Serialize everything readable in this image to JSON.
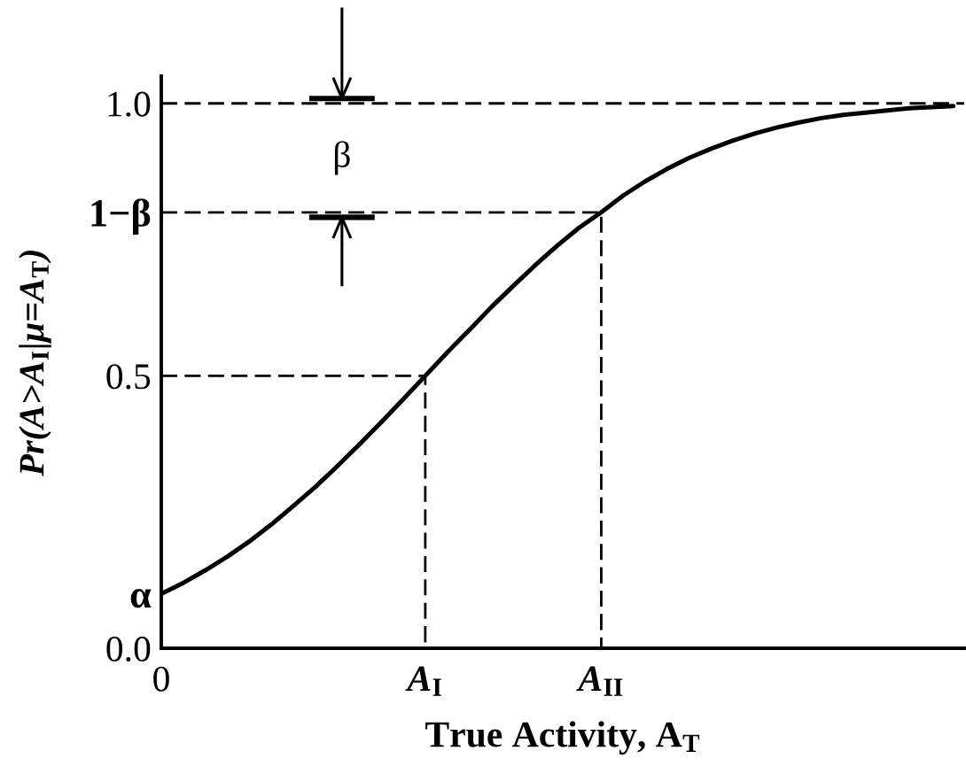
{
  "chart_data": {
    "type": "line",
    "xlabel": "True Activity, A$_{T}$",
    "ylabel": "Pr(A>A$_{I}$|μ=A$_{T}$)",
    "categories": [
      "0",
      null,
      null,
      null,
      null,
      null,
      null,
      null,
      null,
      null,
      null,
      null,
      "A$_{I}$",
      null,
      null,
      null,
      null,
      null,
      null,
      null,
      "A$_{II}$",
      null,
      null,
      null,
      null,
      null,
      null,
      null,
      null,
      null,
      null,
      null,
      null,
      null,
      null,
      null,
      null
    ],
    "ylim": [
      0,
      1.05
    ],
    "yticks": [
      {
        "value": 0,
        "label": "0.0"
      },
      {
        "value": 0.1,
        "label": "α"
      },
      0.5,
      {
        "value": 0.8,
        "label": "1−β"
      },
      {
        "value": 1,
        "label": "1.0"
      }
    ],
    "series": [
      {
        "color": "#000000",
        "line_style": "solid",
        "values": [
          0.1,
          0.12,
          0.143,
          0.168,
          0.196,
          0.227,
          0.261,
          0.296,
          0.334,
          0.374,
          0.415,
          0.457,
          0.5,
          0.543,
          0.584,
          0.626,
          0.665,
          0.703,
          0.739,
          0.772,
          0.8,
          0.831,
          0.857,
          0.88,
          0.9,
          0.917,
          0.932,
          0.945,
          0.956,
          0.965,
          0.973,
          0.979,
          0.983,
          0.987,
          0.991,
          0.993,
          0.995
        ]
      },
      {
        "color": "#000000",
        "line_style": "dashed",
        "x": [
          "0",
          "A$_{I}$",
          "A$_{I}$"
        ],
        "values": [
          0.5,
          0.5,
          0
        ]
      },
      {
        "color": "#000000",
        "line_style": "dashed",
        "x": [
          "0",
          "A$_{II}$",
          "A$_{II}$"
        ],
        "values": [
          0.8,
          0.8,
          0
        ]
      }
    ],
    "ref_lines": [
      {
        "axis": "y",
        "value": 1,
        "color": "#000000",
        "line_style": "dashed"
      }
    ],
    "annotations": [
      "β"
    ]
  }
}
